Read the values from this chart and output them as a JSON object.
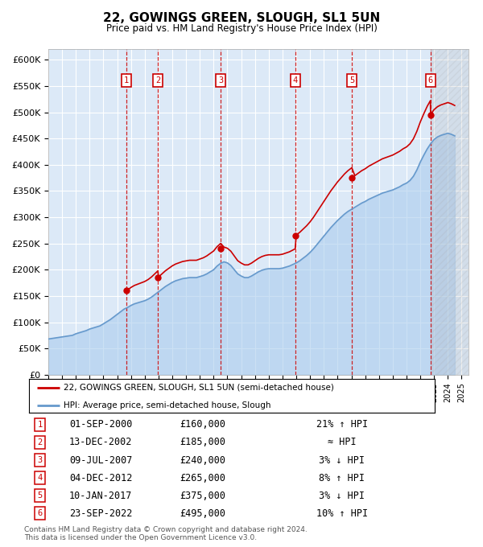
{
  "title": "22, GOWINGS GREEN, SLOUGH, SL1 5UN",
  "subtitle": "Price paid vs. HM Land Registry's House Price Index (HPI)",
  "ylim": [
    0,
    620000
  ],
  "yticks": [
    0,
    50000,
    100000,
    150000,
    200000,
    250000,
    300000,
    350000,
    400000,
    450000,
    500000,
    550000,
    600000
  ],
  "xlim_start": 1995.0,
  "xlim_end": 2025.5,
  "background_color": "#dce9f7",
  "grid_color": "#ffffff",
  "sale_color": "#cc0000",
  "hpi_color": "#6699cc",
  "hpi_fill_color": "#aaccee",
  "transactions": [
    {
      "num": 1,
      "date_label": "01-SEP-2000",
      "year": 2000.67,
      "price": 160000,
      "note": "21% ↑ HPI"
    },
    {
      "num": 2,
      "date_label": "13-DEC-2002",
      "year": 2002.95,
      "price": 185000,
      "note": "≈ HPI"
    },
    {
      "num": 3,
      "date_label": "09-JUL-2007",
      "year": 2007.52,
      "price": 240000,
      "note": "3% ↓ HPI"
    },
    {
      "num": 4,
      "date_label": "04-DEC-2012",
      "year": 2012.92,
      "price": 265000,
      "note": "8% ↑ HPI"
    },
    {
      "num": 5,
      "date_label": "10-JAN-2017",
      "year": 2017.03,
      "price": 375000,
      "note": "3% ↓ HPI"
    },
    {
      "num": 6,
      "date_label": "23-SEP-2022",
      "year": 2022.73,
      "price": 495000,
      "note": "10% ↑ HPI"
    }
  ],
  "hpi_data": [
    [
      1995.0,
      68000
    ],
    [
      1995.25,
      69000
    ],
    [
      1995.5,
      70000
    ],
    [
      1995.75,
      71000
    ],
    [
      1996.0,
      72000
    ],
    [
      1996.25,
      73000
    ],
    [
      1996.5,
      74000
    ],
    [
      1996.75,
      75000
    ],
    [
      1997.0,
      78000
    ],
    [
      1997.25,
      80000
    ],
    [
      1997.5,
      82000
    ],
    [
      1997.75,
      84000
    ],
    [
      1998.0,
      87000
    ],
    [
      1998.25,
      89000
    ],
    [
      1998.5,
      91000
    ],
    [
      1998.75,
      93000
    ],
    [
      1999.0,
      97000
    ],
    [
      1999.25,
      101000
    ],
    [
      1999.5,
      105000
    ],
    [
      1999.75,
      110000
    ],
    [
      2000.0,
      115000
    ],
    [
      2000.25,
      120000
    ],
    [
      2000.5,
      125000
    ],
    [
      2000.75,
      128000
    ],
    [
      2001.0,
      132000
    ],
    [
      2001.25,
      135000
    ],
    [
      2001.5,
      137000
    ],
    [
      2001.75,
      139000
    ],
    [
      2002.0,
      141000
    ],
    [
      2002.25,
      144000
    ],
    [
      2002.5,
      148000
    ],
    [
      2002.75,
      153000
    ],
    [
      2003.0,
      158000
    ],
    [
      2003.25,
      163000
    ],
    [
      2003.5,
      168000
    ],
    [
      2003.75,
      172000
    ],
    [
      2004.0,
      176000
    ],
    [
      2004.25,
      179000
    ],
    [
      2004.5,
      181000
    ],
    [
      2004.75,
      183000
    ],
    [
      2005.0,
      184000
    ],
    [
      2005.25,
      185000
    ],
    [
      2005.5,
      185000
    ],
    [
      2005.75,
      185000
    ],
    [
      2006.0,
      187000
    ],
    [
      2006.25,
      189000
    ],
    [
      2006.5,
      192000
    ],
    [
      2006.75,
      196000
    ],
    [
      2007.0,
      200000
    ],
    [
      2007.25,
      207000
    ],
    [
      2007.5,
      212000
    ],
    [
      2007.75,
      215000
    ],
    [
      2008.0,
      213000
    ],
    [
      2008.25,
      208000
    ],
    [
      2008.5,
      200000
    ],
    [
      2008.75,
      192000
    ],
    [
      2009.0,
      188000
    ],
    [
      2009.25,
      185000
    ],
    [
      2009.5,
      185000
    ],
    [
      2009.75,
      188000
    ],
    [
      2010.0,
      192000
    ],
    [
      2010.25,
      196000
    ],
    [
      2010.5,
      199000
    ],
    [
      2010.75,
      201000
    ],
    [
      2011.0,
      202000
    ],
    [
      2011.25,
      202000
    ],
    [
      2011.5,
      202000
    ],
    [
      2011.75,
      202000
    ],
    [
      2012.0,
      203000
    ],
    [
      2012.25,
      205000
    ],
    [
      2012.5,
      207000
    ],
    [
      2012.75,
      210000
    ],
    [
      2013.0,
      213000
    ],
    [
      2013.25,
      217000
    ],
    [
      2013.5,
      222000
    ],
    [
      2013.75,
      227000
    ],
    [
      2014.0,
      233000
    ],
    [
      2014.25,
      240000
    ],
    [
      2014.5,
      248000
    ],
    [
      2014.75,
      256000
    ],
    [
      2015.0,
      264000
    ],
    [
      2015.25,
      272000
    ],
    [
      2015.5,
      280000
    ],
    [
      2015.75,
      287000
    ],
    [
      2016.0,
      294000
    ],
    [
      2016.25,
      300000
    ],
    [
      2016.5,
      306000
    ],
    [
      2016.75,
      311000
    ],
    [
      2017.0,
      315000
    ],
    [
      2017.25,
      319000
    ],
    [
      2017.5,
      323000
    ],
    [
      2017.75,
      327000
    ],
    [
      2018.0,
      330000
    ],
    [
      2018.25,
      334000
    ],
    [
      2018.5,
      337000
    ],
    [
      2018.75,
      340000
    ],
    [
      2019.0,
      343000
    ],
    [
      2019.25,
      346000
    ],
    [
      2019.5,
      348000
    ],
    [
      2019.75,
      350000
    ],
    [
      2020.0,
      352000
    ],
    [
      2020.25,
      355000
    ],
    [
      2020.5,
      358000
    ],
    [
      2020.75,
      362000
    ],
    [
      2021.0,
      365000
    ],
    [
      2021.25,
      370000
    ],
    [
      2021.5,
      378000
    ],
    [
      2021.75,
      390000
    ],
    [
      2022.0,
      405000
    ],
    [
      2022.25,
      418000
    ],
    [
      2022.5,
      430000
    ],
    [
      2022.75,
      440000
    ],
    [
      2023.0,
      448000
    ],
    [
      2023.25,
      453000
    ],
    [
      2023.5,
      456000
    ],
    [
      2023.75,
      458000
    ],
    [
      2024.0,
      460000
    ],
    [
      2024.25,
      458000
    ],
    [
      2024.5,
      455000
    ]
  ],
  "footnote": "Contains HM Land Registry data © Crown copyright and database right 2024.\nThis data is licensed under the Open Government Licence v3.0."
}
